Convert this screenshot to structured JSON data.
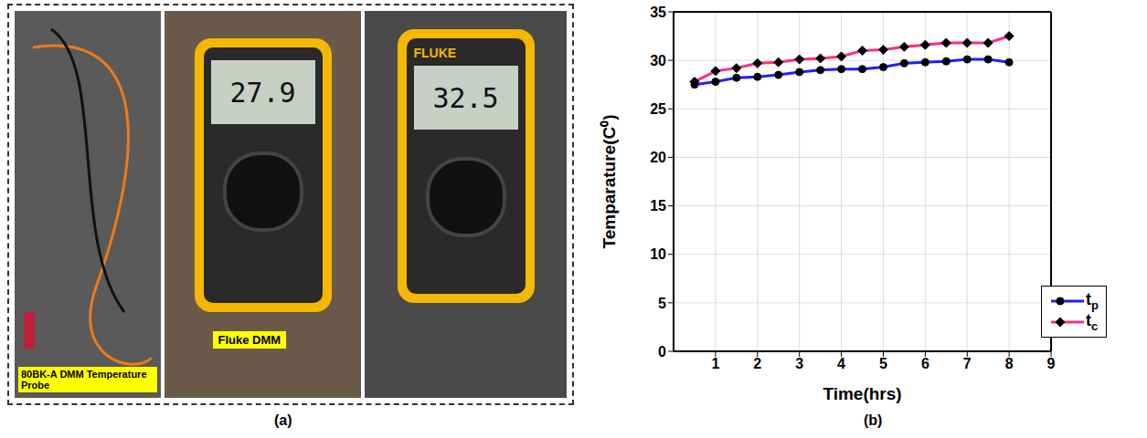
{
  "captions": [
    "(a)",
    "(b)"
  ],
  "panel_a": {
    "photos": [
      {
        "label": "80BK-A DMM Temperature Probe"
      },
      {
        "label": "Fluke DMM",
        "reading": "27.9"
      },
      {
        "brand": "FLUKE",
        "reading": "32.5"
      }
    ]
  },
  "chart_data": {
    "type": "line",
    "x_label": "Time(hrs)",
    "y_label": "Temparature(C⁰)",
    "x": [
      0.5,
      1,
      1.5,
      2,
      2.5,
      3,
      3.5,
      4,
      4.5,
      5,
      5.5,
      6,
      6.5,
      7,
      7.5,
      8
    ],
    "series": [
      {
        "name": "tp",
        "color": "#1f1fff",
        "marker": "circle",
        "values": [
          27.5,
          27.8,
          28.2,
          28.3,
          28.5,
          28.8,
          29.0,
          29.1,
          29.1,
          29.3,
          29.7,
          29.8,
          29.9,
          30.1,
          30.1,
          29.8
        ]
      },
      {
        "name": "tc",
        "color": "#ff2a8a",
        "marker": "diamond",
        "values": [
          27.8,
          28.9,
          29.2,
          29.7,
          29.8,
          30.1,
          30.2,
          30.4,
          31.0,
          31.1,
          31.4,
          31.6,
          31.8,
          31.8,
          31.8,
          32.5
        ]
      }
    ],
    "xlim": [
      0,
      9
    ],
    "xticks": [
      1,
      2,
      3,
      4,
      5,
      6,
      7,
      8,
      9
    ],
    "ylim": [
      0,
      35
    ],
    "yticks": [
      0,
      5,
      10,
      15,
      20,
      25,
      30,
      35
    ],
    "grid": true,
    "legend": "lower right"
  }
}
